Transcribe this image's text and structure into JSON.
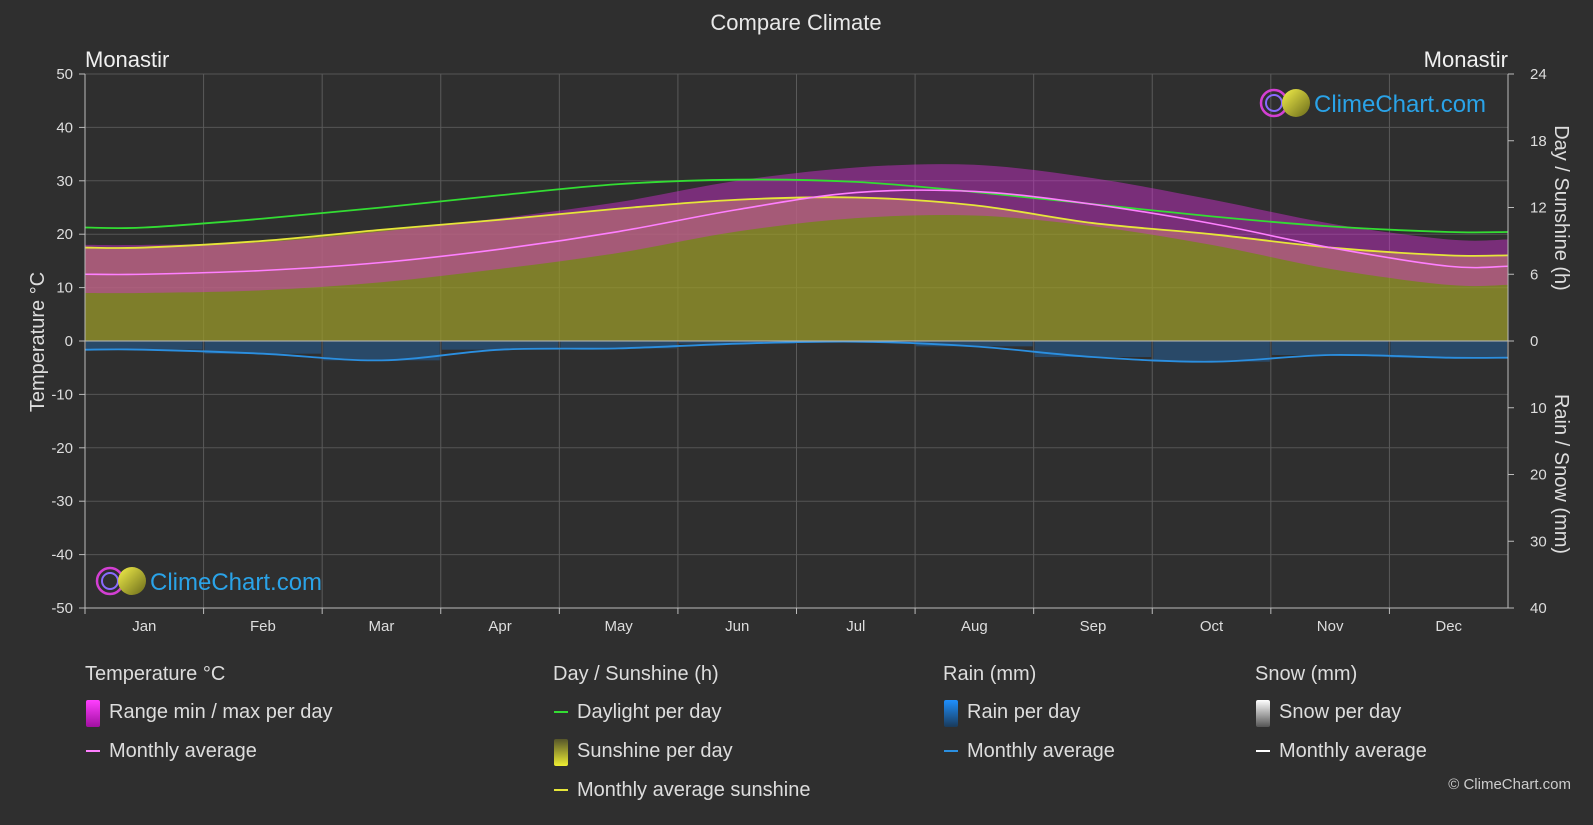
{
  "title": "Compare Climate",
  "location_left": "Monastir",
  "location_right": "Monastir",
  "logo_text": "ClimeChart.com",
  "copyright": "© ClimeChart.com",
  "axis_left_label": "Temperature °C",
  "axis_right_top_label": "Day / Sunshine (h)",
  "axis_right_bottom_label": "Rain / Snow (mm)",
  "legend": {
    "temperature": {
      "title": "Temperature °C",
      "items": [
        "Range min / max per day",
        "Monthly average"
      ]
    },
    "sunshine": {
      "title": "Day / Sunshine (h)",
      "items": [
        "Daylight per day",
        "Sunshine per day",
        "Monthly average sunshine"
      ]
    },
    "rain": {
      "title": "Rain (mm)",
      "items": [
        "Rain per day",
        "Monthly average"
      ]
    },
    "snow": {
      "title": "Snow (mm)",
      "items": [
        "Snow per day",
        "Monthly average"
      ]
    }
  },
  "colors": {
    "background": "#2f2f2f",
    "temp_range": "#d42fd4",
    "temp_avg": "#ff7fff",
    "daylight": "#33dd33",
    "sunshine_fill": "#9a9a2a",
    "sunshine_avg": "#e6e63a",
    "rain": "#1e90ff",
    "rain_avg": "#2b8fe0",
    "snow": "#ffffff"
  },
  "chart_data": {
    "type": "area",
    "categories": [
      "Jan",
      "Feb",
      "Mar",
      "Apr",
      "May",
      "Jun",
      "Jul",
      "Aug",
      "Sep",
      "Oct",
      "Nov",
      "Dec"
    ],
    "y_left": {
      "label": "Temperature °C",
      "range": [
        -50,
        50
      ],
      "ticks": [
        50,
        40,
        30,
        20,
        10,
        0,
        -10,
        -20,
        -30,
        -40,
        -50
      ]
    },
    "y_right_top": {
      "label": "Day / Sunshine (h)",
      "range": [
        0,
        24
      ],
      "ticks": [
        24,
        18,
        12,
        6,
        0
      ]
    },
    "y_right_bottom": {
      "label": "Rain / Snow (mm)",
      "range": [
        0,
        40
      ],
      "ticks": [
        0,
        10,
        20,
        30,
        40
      ]
    },
    "series": [
      {
        "name": "Range min / max per day",
        "min": [
          9,
          9.5,
          11,
          13.5,
          16.5,
          20.5,
          23,
          23.5,
          21.5,
          18,
          13.5,
          10.5
        ],
        "max": [
          18,
          18.5,
          20.5,
          23,
          26,
          30,
          32.5,
          33,
          30.5,
          26.5,
          22,
          19
        ]
      },
      {
        "name": "Monthly average",
        "values": [
          12.5,
          13.2,
          14.7,
          17.2,
          20.5,
          24.6,
          27.8,
          28.0,
          25.6,
          22.0,
          17.5,
          14.0
        ]
      },
      {
        "name": "Daylight per day",
        "values": [
          10.2,
          11.0,
          12.0,
          13.1,
          14.1,
          14.5,
          14.3,
          13.4,
          12.3,
          11.2,
          10.3,
          9.8
        ]
      },
      {
        "name": "Monthly average sunshine",
        "values": [
          8.4,
          9.0,
          10.0,
          10.9,
          11.9,
          12.7,
          12.9,
          12.2,
          10.6,
          9.6,
          8.4,
          7.7
        ]
      },
      {
        "name": "Rain Monthly average",
        "values": [
          1.3,
          1.9,
          2.9,
          1.3,
          1.1,
          0.4,
          0.1,
          0.8,
          2.4,
          3.1,
          2.1,
          2.5
        ]
      }
    ],
    "grid": true,
    "legend_position": "bottom"
  }
}
